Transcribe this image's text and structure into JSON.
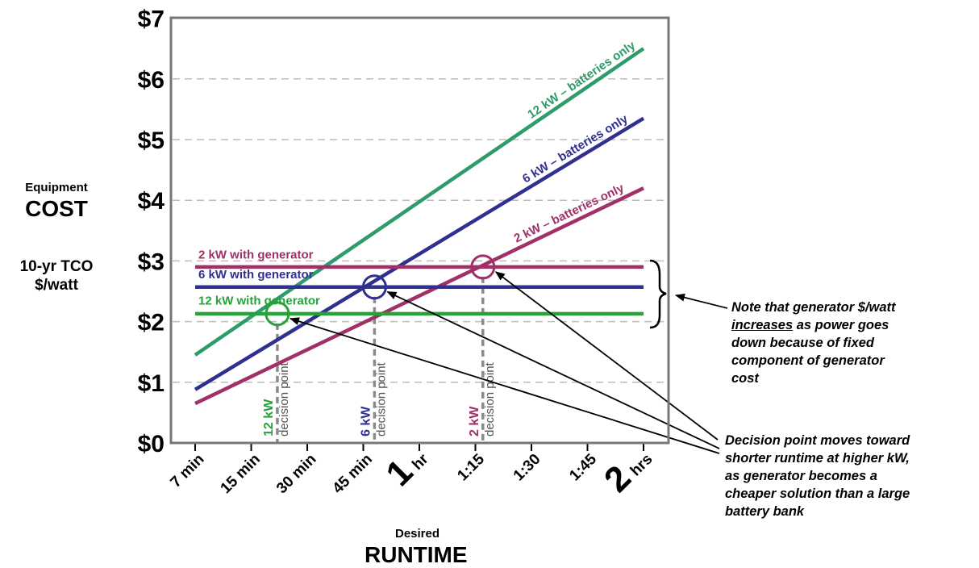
{
  "chart_data": {
    "type": "line",
    "ylabel_small": "Equipment",
    "ylabel_big": "COST",
    "ylabel_line1": "10-yr TCO",
    "ylabel_line2": "$/watt",
    "xlabel_small": "Desired",
    "xlabel_big": "RUNTIME",
    "ylim": [
      0,
      7
    ],
    "yticks": [
      "$0",
      "$1",
      "$2",
      "$3",
      "$4",
      "$5",
      "$6",
      "$7"
    ],
    "x_ticks": [
      {
        "label": "7 min",
        "value": 7
      },
      {
        "label": "15 min",
        "value": 15
      },
      {
        "label": "30 min",
        "value": 30
      },
      {
        "label": "45 min",
        "value": 45
      },
      {
        "label_big": "1",
        "label_small": "hr",
        "value": 60
      },
      {
        "label": "1:15",
        "value": 75
      },
      {
        "label": "1:30",
        "value": 90
      },
      {
        "label": "1:45",
        "value": 105
      },
      {
        "label_big": "2",
        "label_small": "hrs",
        "value": 120
      }
    ],
    "grid": "horizontal dashed",
    "series": [
      {
        "name": "12 kW – batteries only",
        "color": "#2e9c6a",
        "x": [
          7,
          120
        ],
        "y": [
          1.45,
          6.5
        ]
      },
      {
        "name": "6 kW – batteries only",
        "color": "#303090",
        "x": [
          7,
          120
        ],
        "y": [
          0.88,
          5.35
        ]
      },
      {
        "name": "2 kW – batteries only",
        "color": "#a03068",
        "x": [
          7,
          120
        ],
        "y": [
          0.65,
          4.2
        ]
      },
      {
        "name": "2 kW with generator",
        "color": "#a03068",
        "x": [
          7,
          120
        ],
        "y": [
          2.9,
          2.9
        ]
      },
      {
        "name": "6 kW with generator",
        "color": "#303090",
        "x": [
          7,
          120
        ],
        "y": [
          2.57,
          2.57
        ]
      },
      {
        "name": "12 kW with generator",
        "color": "#27a13a",
        "x": [
          7,
          120
        ],
        "y": [
          2.13,
          2.13
        ]
      }
    ],
    "decision_points": [
      {
        "kw": "12 kW",
        "label": "decision point",
        "color": "#27a13a",
        "x": 22,
        "y": 2.13
      },
      {
        "kw": "6 kW",
        "label": "decision point",
        "color": "#303090",
        "x": 48,
        "y": 2.57
      },
      {
        "kw": "2 kW",
        "label": "decision point",
        "color": "#a03068",
        "x": 77,
        "y": 2.9
      }
    ],
    "annotations": {
      "note_line1": "Note that generator $/watt",
      "note_line2_u": "increases",
      "note_line2_rest": " as power goes",
      "note_line3": "down because of fixed",
      "note_line4": "component of generator",
      "note_line5": "cost",
      "decision_line1": "Decision point moves toward",
      "decision_line2": "shorter runtime at higher kW,",
      "decision_line3": "as generator becomes a",
      "decision_line4": "cheaper solution than a large",
      "decision_line5": "battery bank"
    }
  }
}
